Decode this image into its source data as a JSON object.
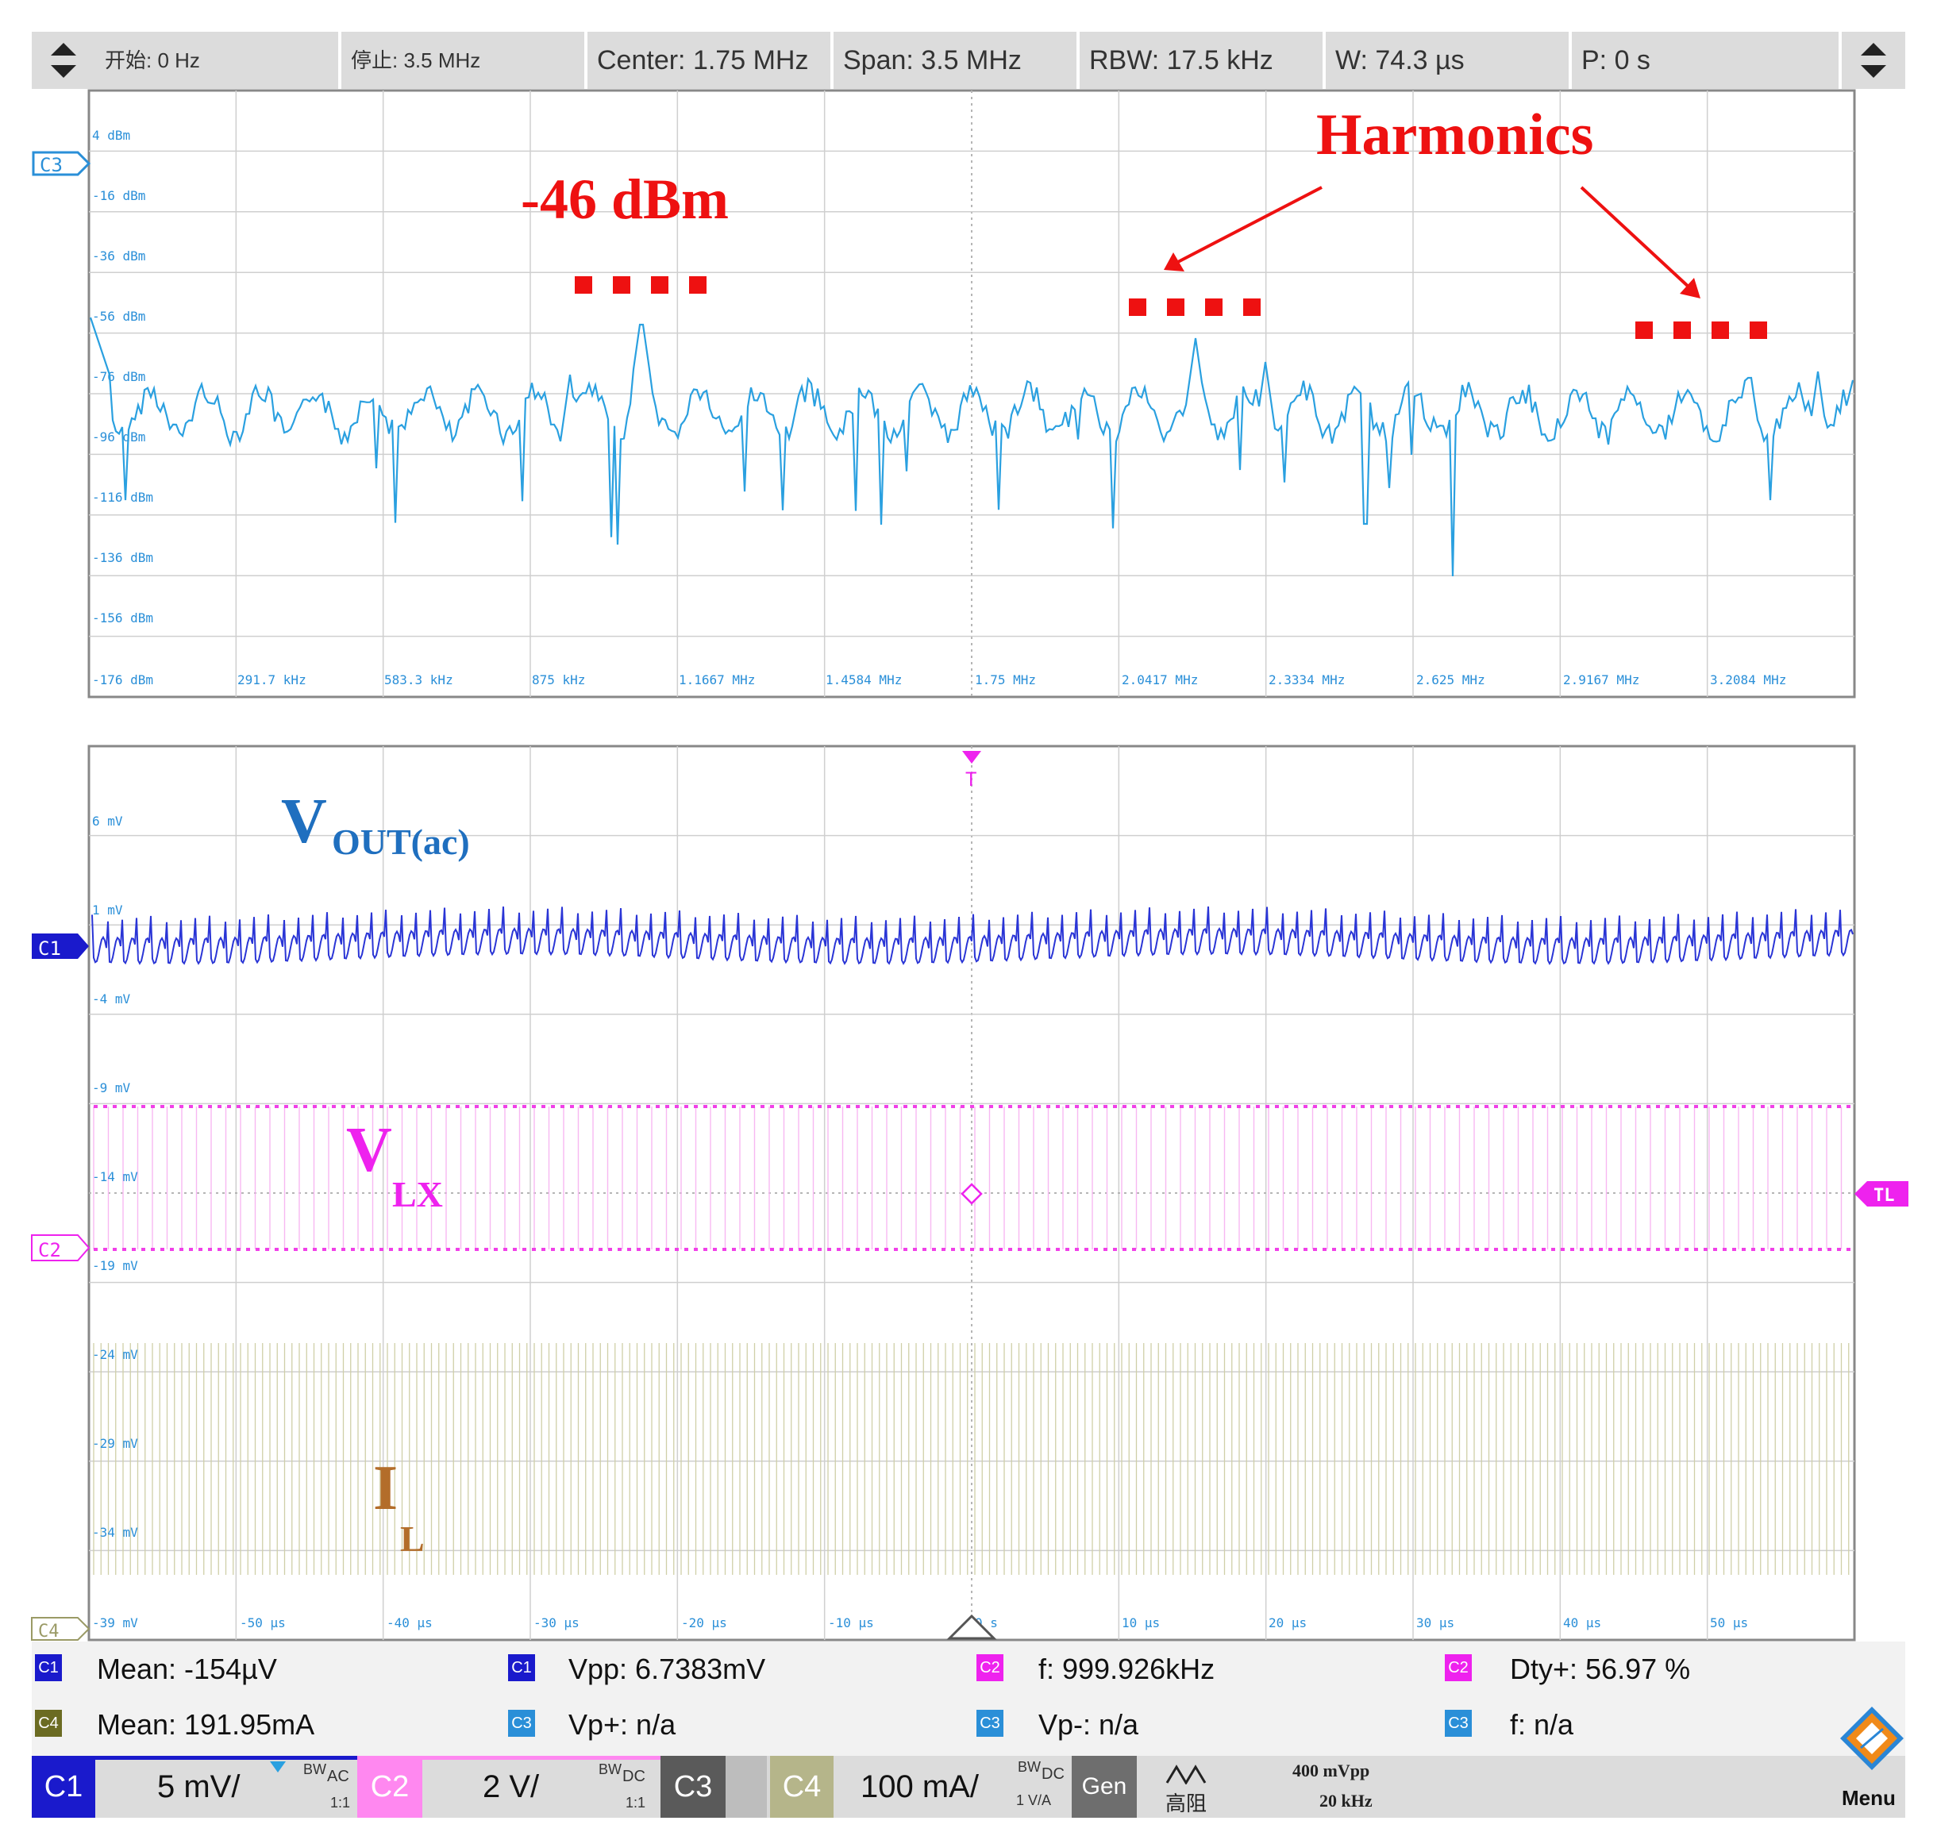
{
  "toolbar": {
    "start": "开始: 0 Hz",
    "stop": "停止: 3.5 MHz",
    "center": "Center: 1.75 MHz",
    "span": "Span: 3.5 MHz",
    "rbw": "RBW: 17.5 kHz",
    "width": "W: 74.3 µs",
    "position": "P: 0 s"
  },
  "spectrum": {
    "channel_marker": "C3",
    "y_ticks": [
      "4 dBm",
      "-16 dBm",
      "-36 dBm",
      "-56 dBm",
      "-76 dBm",
      "-96 dBm",
      "-116 dBm",
      "-136 dBm",
      "-156 dBm",
      "-176 dBm"
    ],
    "x_ticks": [
      "291.7 kHz",
      "583.3 kHz",
      "875 kHz",
      "1.1667 MHz",
      "1.4584 MHz",
      "1.75 MHz",
      "2.0417 MHz",
      "2.3334 MHz",
      "2.625 MHz",
      "2.9167 MHz",
      "3.2084 MHz"
    ],
    "annotation_peak": "-46 dBm",
    "annotation_harmonics": "Harmonics"
  },
  "waveform": {
    "trigger_marker": "T",
    "trigger_level_marker": "TL",
    "channel_markers": {
      "c1": "C1",
      "c2": "C2",
      "c4": "C4"
    },
    "y_ticks": [
      "6 mV",
      "1 mV",
      "-4 mV",
      "-9 mV",
      "-14 mV",
      "-19 mV",
      "-24 mV",
      "-29 mV",
      "-34 mV",
      "-39 mV"
    ],
    "x_ticks": [
      "-50 µs",
      "-40 µs",
      "-30 µs",
      "-20 µs",
      "-10 µs",
      "0 s",
      "10 µs",
      "20 µs",
      "30 µs",
      "40 µs",
      "50 µs"
    ],
    "label_vout_main": "V",
    "label_vout_sub": "OUT(ac)",
    "label_vlx_main": "V",
    "label_vlx_sub": "LX",
    "label_il_main": "I",
    "label_il_sub": "L"
  },
  "measurements": [
    {
      "channel": "C1",
      "text": "Mean: -154µV",
      "color": "#1a1acc"
    },
    {
      "channel": "C1",
      "text": "Vpp: 6.7383mV",
      "color": "#1a1acc"
    },
    {
      "channel": "C2",
      "text": "f: 999.926kHz",
      "color": "#ee22ee"
    },
    {
      "channel": "C2",
      "text": "Dty+: 56.97 %",
      "color": "#ee22ee"
    },
    {
      "channel": "C4",
      "text": "Mean: 191.95mA",
      "color": "#6b6b22"
    },
    {
      "channel": "C3",
      "text": "Vp+: n/a",
      "color": "#2a8fd8"
    },
    {
      "channel": "C3",
      "text": "Vp-: n/a",
      "color": "#2a8fd8"
    },
    {
      "channel": "C3",
      "text": "f: n/a",
      "color": "#2a8fd8"
    }
  ],
  "bottom_bar": {
    "c1_label": "C1",
    "c1_scale": "5 mV/",
    "c1_coupling": "AC",
    "c1_ratio": "1:1",
    "c2_label": "C2",
    "c2_scale": "2 V/",
    "c2_coupling": "DC",
    "c2_ratio": "1:1",
    "c3_label": "C3",
    "c4_label": "C4",
    "c4_scale": "100 mA/",
    "c4_coupling": "DC",
    "c4_ratio": "1 V/A",
    "gen_label": "Gen",
    "gen_mode": "高阻",
    "gen_amplitude": "400 mVpp",
    "gen_freq": "20 kHz",
    "menu_label": "Menu",
    "bw_prefix": "BW"
  },
  "colors": {
    "spectrum": "#2aa0e0",
    "vout": "#2a35d6",
    "vlx": "#f040e8",
    "il": "#b5b58a",
    "annotation": "#ee1111",
    "grid": "#cfcfcf"
  }
}
